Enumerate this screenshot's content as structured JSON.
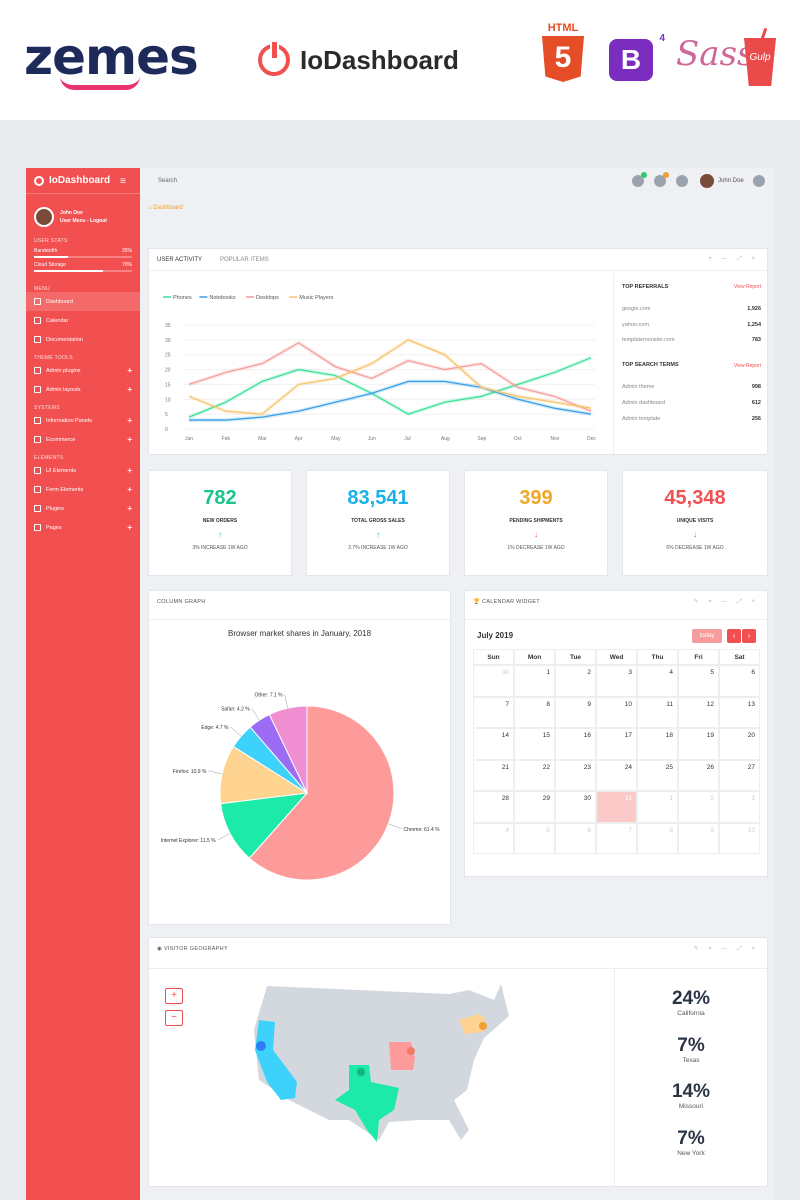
{
  "banner": {
    "vendor": "zemes",
    "product": "IoDashboard",
    "html5_label": "HTML",
    "html5_num": "5",
    "bootstrap": "B",
    "bootstrap_ver": "4",
    "sass": "Sass",
    "gulp": "Gulp"
  },
  "sidebar": {
    "brand": "IoDashboard",
    "user_name": "John Doe",
    "user_links": "User Menu - Logout",
    "section_user_stats": "USER STATS",
    "stats": [
      {
        "label": "Bandwidth",
        "value": "35%",
        "fraction": 0.35
      },
      {
        "label": "Cloud Storage",
        "value": "70%",
        "fraction": 0.7
      }
    ],
    "section_menu": "MENU",
    "menu": [
      "Dashboard",
      "Calendar",
      "Documentation"
    ],
    "section_theme": "THEME TOOLS",
    "theme": [
      "Admin plugins",
      "Admin layouts"
    ],
    "section_systems": "SYSTEMS",
    "systems": [
      "Information Panels",
      "Ecommerce"
    ],
    "section_elements": "ELEMENTS",
    "elements": [
      "UI Elements",
      "Form Elements",
      "Plugins",
      "Pages"
    ]
  },
  "topbar": {
    "search": "Search",
    "user_name": "John Doe",
    "badge_colors": [
      "#2ecc71",
      "#f0a030"
    ]
  },
  "breadcrumb": "Dashboard",
  "activity": {
    "tabs": [
      "USER ACTIVITY",
      "POPULAR ITEMS"
    ],
    "referrals_title": "TOP REFERRALS",
    "view_report": "View Report",
    "referrals": [
      {
        "name": "google.com",
        "value": "1,926"
      },
      {
        "name": "yahoo.com",
        "value": "1,254"
      },
      {
        "name": "templatemonster.com",
        "value": "783"
      }
    ],
    "search_title": "TOP SEARCH TERMS",
    "search_terms": [
      {
        "name": "Admin theme",
        "value": "998"
      },
      {
        "name": "Admin dashboard",
        "value": "612"
      },
      {
        "name": "Admin template",
        "value": "256"
      }
    ]
  },
  "chart_data": [
    {
      "type": "line",
      "x": [
        "Jan",
        "Feb",
        "Mar",
        "Apr",
        "May",
        "Jun",
        "Jul",
        "Aug",
        "Sep",
        "Oct",
        "Nov",
        "Dec"
      ],
      "yticks": [
        0,
        5,
        10,
        15,
        20,
        25,
        30,
        35
      ],
      "ylim": [
        0,
        35
      ],
      "legend": "top-left",
      "series": [
        {
          "name": "Phones",
          "color": "#3ee09a",
          "values": [
            4,
            9,
            16,
            20,
            18,
            12,
            5,
            9,
            11,
            15,
            19,
            24
          ]
        },
        {
          "name": "Notebooks",
          "color": "#3aa0e8",
          "values": [
            3,
            3,
            4,
            6,
            9,
            12,
            16,
            16,
            14,
            10,
            7,
            5
          ]
        },
        {
          "name": "Desktops",
          "color": "#f79c9c",
          "values": [
            15,
            19,
            22,
            29,
            21,
            17,
            23,
            20,
            22,
            14,
            11,
            6
          ]
        },
        {
          "name": "Music Players",
          "color": "#f7c46c",
          "values": [
            11,
            6,
            5,
            15,
            17,
            22,
            30,
            25,
            14,
            11,
            9,
            7
          ]
        }
      ]
    },
    {
      "type": "pie",
      "title": "Browser market shares in January, 2018",
      "slices": [
        {
          "name": "Chrome",
          "label": "Chrome: 61.4 %",
          "value": 61.4,
          "color": "#fd9a9a"
        },
        {
          "name": "Internet Explorer",
          "label": "Internet Explorer: 11.5 %",
          "value": 11.5,
          "color": "#1de9a8"
        },
        {
          "name": "Firefox",
          "label": "Firefox: 10.9 %",
          "value": 10.9,
          "color": "#ffd390"
        },
        {
          "name": "Edge",
          "label": "Edge: 4.7 %",
          "value": 4.7,
          "color": "#3dd2fb"
        },
        {
          "name": "Safari",
          "label": "Safari: 4.2 %",
          "value": 4.2,
          "color": "#9c6cf4"
        },
        {
          "name": "Other",
          "label": "Other: 7.1 %",
          "value": 7.1,
          "color": "#f08ed2"
        }
      ]
    }
  ],
  "kpis": [
    {
      "value": "782",
      "label": "NEW ORDERS",
      "arrow": "↑",
      "sub": "3% INCREASE 1W AGO",
      "color": "#1ac58a",
      "arrow_color": "#1ac58a"
    },
    {
      "value": "83,541",
      "label": "TOTAL GROSS SALES",
      "arrow": "↑",
      "sub": "2.7% INCREASE 1W AGO",
      "color": "#1ab0e8",
      "arrow_color": "#1ac58a"
    },
    {
      "value": "399",
      "label": "PENDING SHIPMENTS",
      "arrow": "↓",
      "sub": "1% DECREASE 1W AGO",
      "color": "#f0a824",
      "arrow_color": "#f25050"
    },
    {
      "value": "45,348",
      "label": "UNIQUE VISITS",
      "arrow": "↓",
      "sub": "6% DECREASE 1W AGO",
      "color": "#f25050",
      "arrow_color": "#f25050"
    }
  ],
  "column_graph": {
    "title": "COLUMN GRAPH"
  },
  "calendar": {
    "title": "CALENDAR WIDGET",
    "month": "July 2019",
    "today": "today",
    "prev": "‹",
    "next": "›",
    "days": [
      "Sun",
      "Mon",
      "Tue",
      "Wed",
      "Thu",
      "Fri",
      "Sat"
    ],
    "cells": [
      {
        "d": "30",
        "m": true
      },
      {
        "d": "1"
      },
      {
        "d": "2"
      },
      {
        "d": "3"
      },
      {
        "d": "4"
      },
      {
        "d": "5"
      },
      {
        "d": "6"
      },
      {
        "d": "7"
      },
      {
        "d": "8"
      },
      {
        "d": "9"
      },
      {
        "d": "10"
      },
      {
        "d": "11"
      },
      {
        "d": "12"
      },
      {
        "d": "13"
      },
      {
        "d": "14"
      },
      {
        "d": "15"
      },
      {
        "d": "16"
      },
      {
        "d": "17"
      },
      {
        "d": "18"
      },
      {
        "d": "19"
      },
      {
        "d": "20"
      },
      {
        "d": "21"
      },
      {
        "d": "22"
      },
      {
        "d": "23"
      },
      {
        "d": "24"
      },
      {
        "d": "25"
      },
      {
        "d": "26"
      },
      {
        "d": "27"
      },
      {
        "d": "28"
      },
      {
        "d": "29"
      },
      {
        "d": "30"
      },
      {
        "d": "31",
        "s": true
      },
      {
        "d": "1",
        "m": true
      },
      {
        "d": "2",
        "m": true
      },
      {
        "d": "3",
        "m": true
      },
      {
        "d": "4",
        "m": true
      },
      {
        "d": "5",
        "m": true
      },
      {
        "d": "6",
        "m": true
      },
      {
        "d": "7",
        "m": true
      },
      {
        "d": "8",
        "m": true
      },
      {
        "d": "9",
        "m": true
      },
      {
        "d": "10",
        "m": true
      }
    ]
  },
  "geo": {
    "title": "VISITOR GEOGRAPHY",
    "zoom_in": "+",
    "zoom_out": "−",
    "stats": [
      {
        "pct": "24%",
        "state": "California"
      },
      {
        "pct": "7%",
        "state": "Texas"
      },
      {
        "pct": "14%",
        "state": "Missouri"
      },
      {
        "pct": "7%",
        "state": "New York"
      }
    ]
  }
}
